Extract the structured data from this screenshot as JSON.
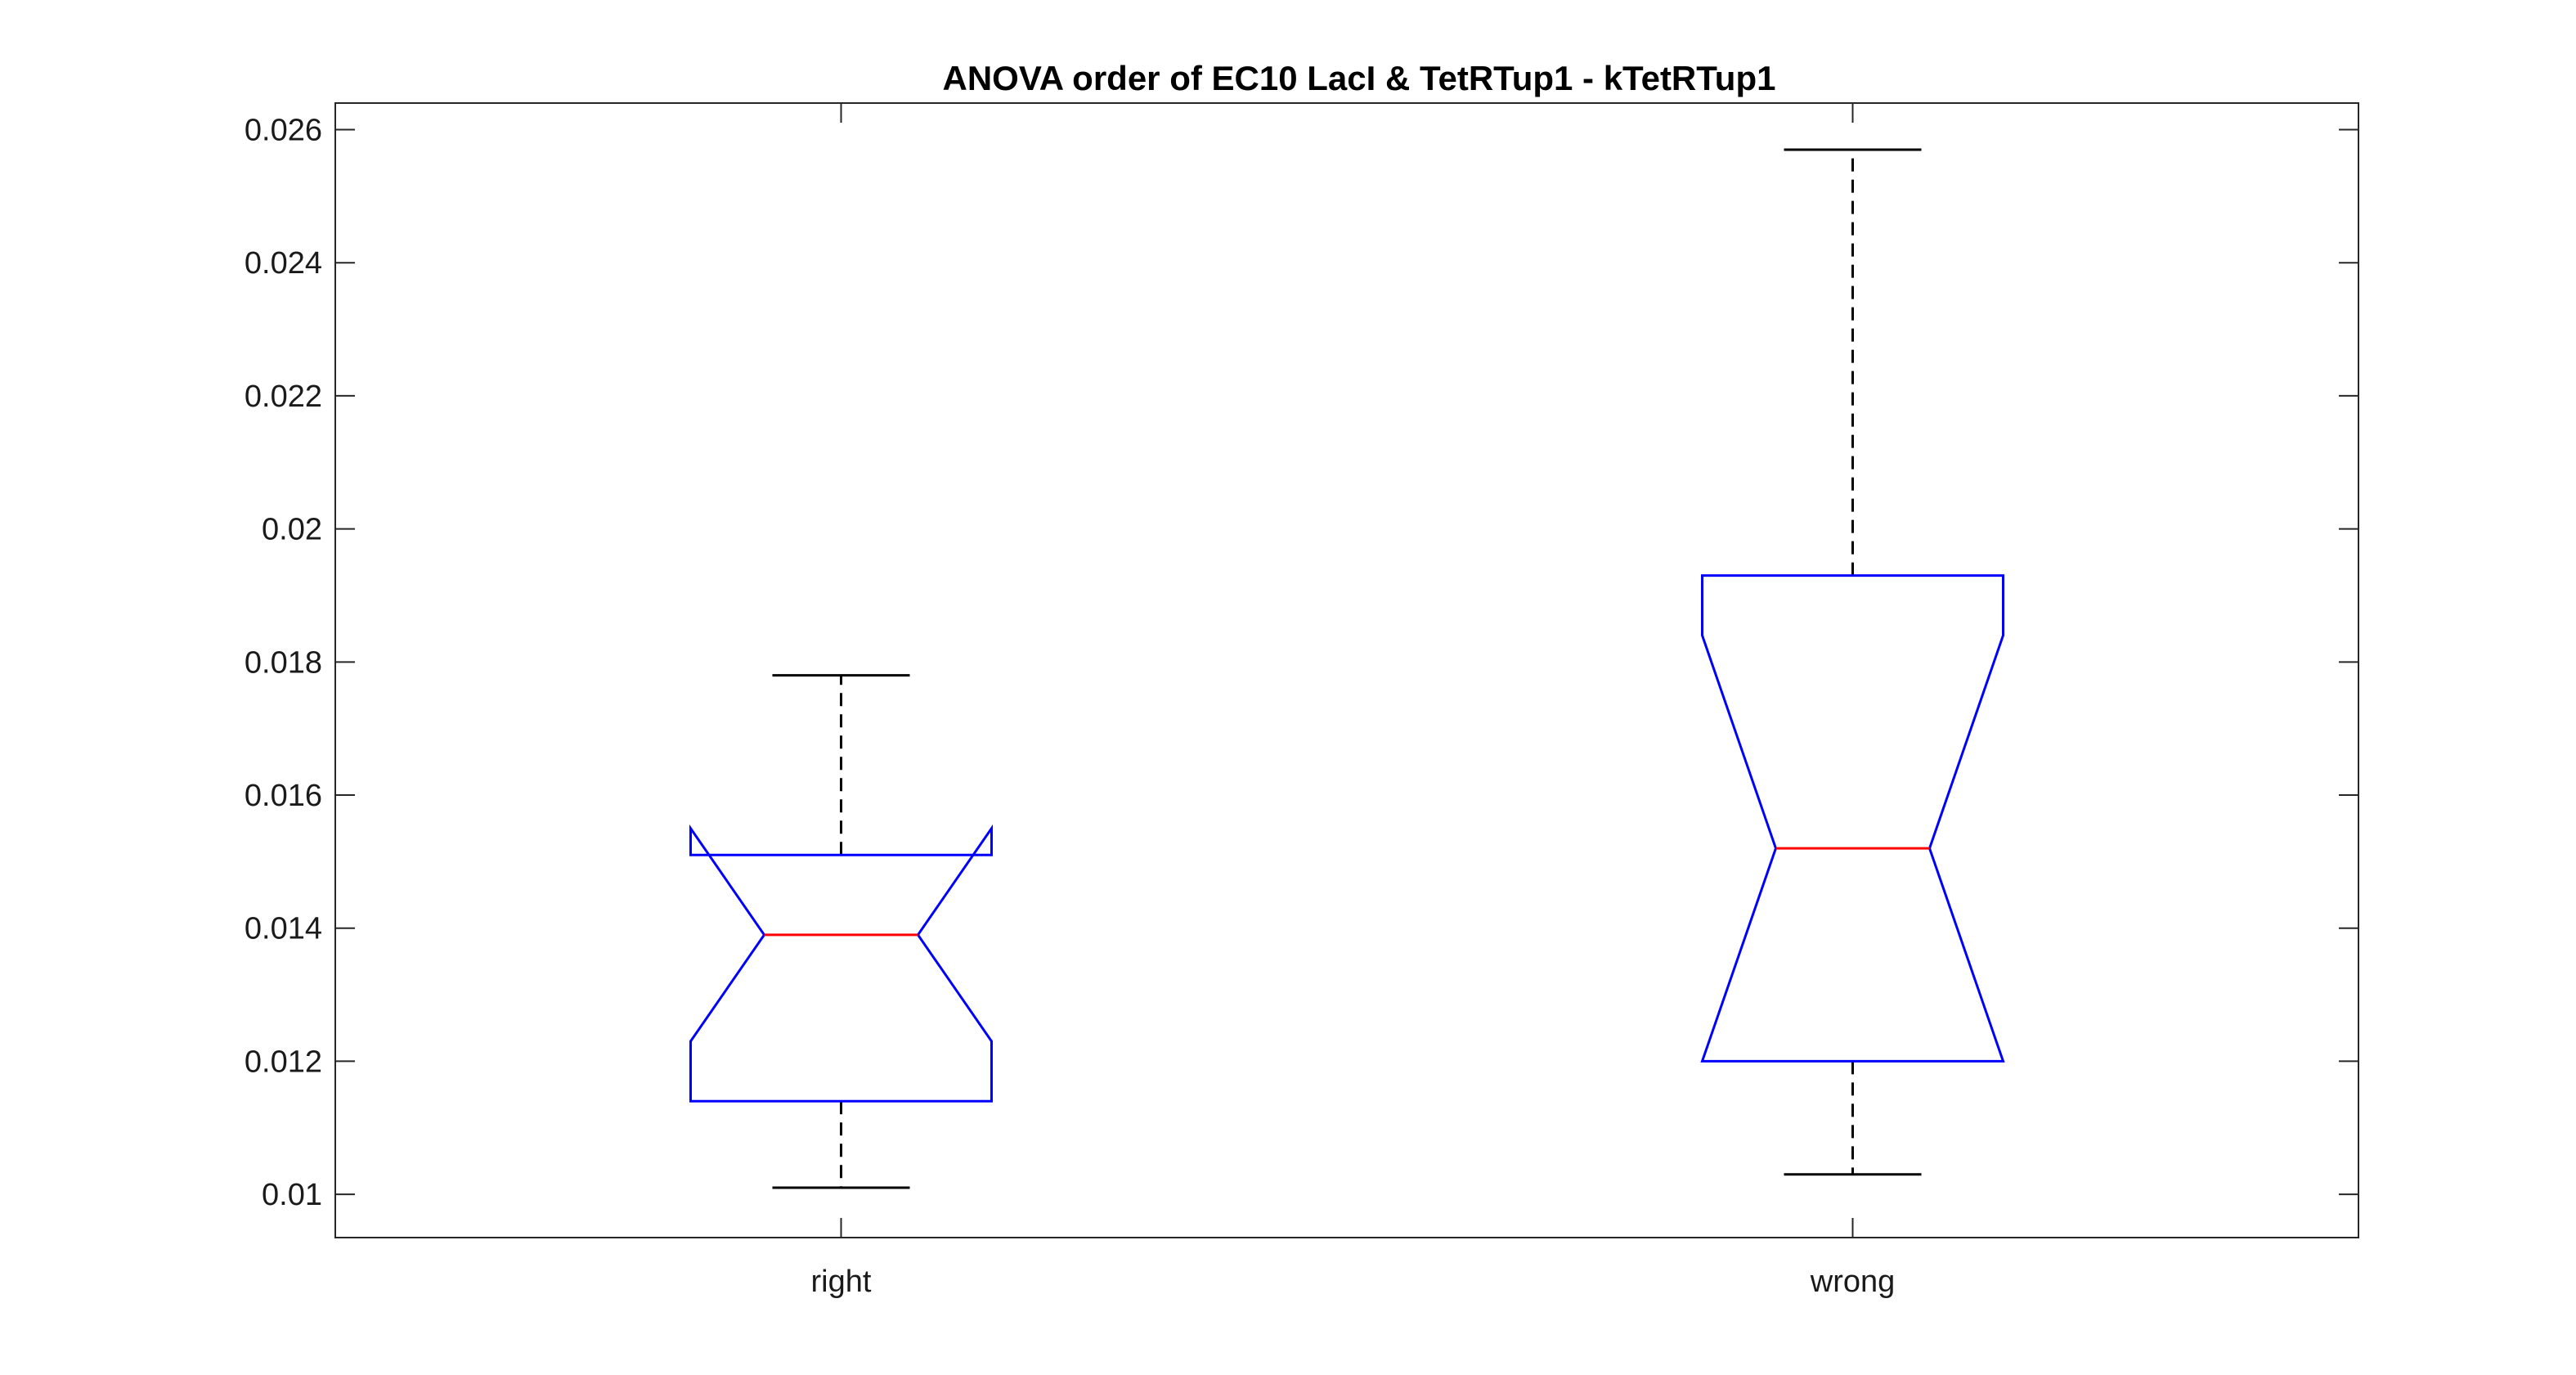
{
  "chart_data": {
    "type": "boxplot",
    "title": "ANOVA order of EC10 LacI & TetRTup1 - kTetRTup1",
    "xlabel": "",
    "ylabel": "",
    "categories": [
      "right",
      "wrong"
    ],
    "ylim": [
      0.00935,
      0.0264
    ],
    "yticks": [
      0.01,
      0.012,
      0.014,
      0.016,
      0.018,
      0.02,
      0.022,
      0.024,
      0.026
    ],
    "ytick_labels": [
      "0.01",
      "0.012",
      "0.014",
      "0.016",
      "0.018",
      "0.02",
      "0.022",
      "0.024",
      "0.026"
    ],
    "grid": false,
    "notched": true,
    "boxes": [
      {
        "category": "right",
        "whisker_low": 0.0101,
        "q1": 0.0114,
        "median": 0.0139,
        "q3": 0.0151,
        "whisker_high": 0.0178,
        "notch_low": 0.0123,
        "notch_high": 0.0155
      },
      {
        "category": "wrong",
        "whisker_low": 0.0103,
        "q1": 0.012,
        "median": 0.0152,
        "q3": 0.0193,
        "whisker_high": 0.0257,
        "notch_low": 0.012,
        "notch_high": 0.0184
      }
    ],
    "colors": {
      "box": "#0000ff",
      "median": "#ff0000",
      "whisker": "#000000",
      "axes": "#262626"
    }
  }
}
